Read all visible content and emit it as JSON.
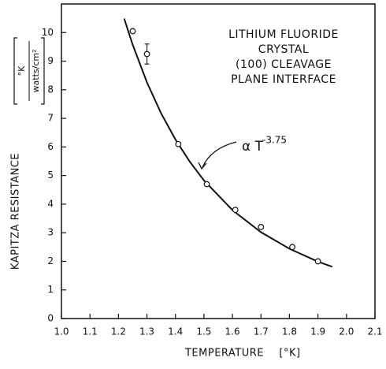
{
  "chart_data": {
    "type": "scatter",
    "xlabel": "TEMPERATURE",
    "xunit": "[°K]",
    "ylabel": "KAPITZA RESISTANCE",
    "yunit_top": "°K",
    "yunit_bottom": "watts/cm²",
    "annotations": [
      "LITHIUM FLUORIDE",
      "CRYSTAL",
      "(100) CLEAVAGE",
      "PLANE INTERFACE"
    ],
    "curve_label": "α T",
    "curve_exponent": "-3.75",
    "xlim": [
      1.0,
      2.1
    ],
    "ylim": [
      0,
      11
    ],
    "xticks": [
      {
        "value": 1.0,
        "label": "1.0"
      },
      1.1,
      1.2,
      1.3,
      1.4,
      1.5,
      1.6,
      1.7,
      1.8,
      1.9,
      {
        "value": 2.0,
        "label": "2.0"
      },
      2.1
    ],
    "yticks": [
      0,
      1,
      2,
      3,
      4,
      5,
      6,
      7,
      8,
      9,
      10
    ],
    "color": "#111111",
    "points": {
      "x": [
        1.25,
        1.3,
        1.41,
        1.51,
        1.61,
        1.7,
        1.81,
        1.9
      ],
      "values": [
        10.05,
        9.25,
        6.1,
        4.7,
        3.8,
        3.2,
        2.5,
        2.0
      ],
      "errors": [
        null,
        0.35,
        null,
        null,
        null,
        null,
        null,
        null
      ]
    },
    "curve": {
      "x": [
        1.22,
        1.25,
        1.3,
        1.35,
        1.4,
        1.45,
        1.5,
        1.6,
        1.7,
        1.8,
        1.9,
        1.95
      ],
      "values": [
        10.49,
        9.57,
        8.26,
        7.17,
        6.26,
        5.49,
        4.83,
        3.79,
        3.02,
        2.44,
        1.99,
        1.81
      ]
    }
  }
}
